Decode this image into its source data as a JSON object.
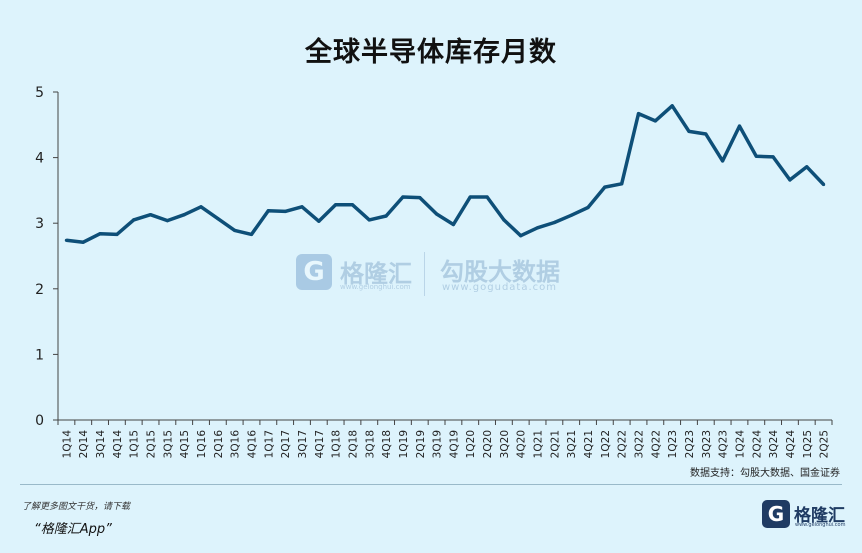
{
  "footer": {
    "source": "数据支持：勾股大数据、国金证券",
    "line1": "了解更多图文干货，请下载",
    "line2": "“格隆汇App”"
  },
  "watermark": {
    "glyph": "G",
    "brand_cn": "格隆汇",
    "brand_url": "www.gelonghui.com",
    "brand2_cn": "勾股大数据",
    "brand2_url": "www.gogudata.com"
  },
  "logo": {
    "glyph": "G",
    "name": "格隆汇",
    "url": "www.gelonghui.com"
  },
  "chart_data": {
    "type": "line",
    "title": "全球半导体库存月数",
    "xlabel": "",
    "ylabel": "",
    "ylim": [
      0,
      5
    ],
    "yticks": [
      0,
      1,
      2,
      3,
      4,
      5
    ],
    "grid": false,
    "color": "#0e4f78",
    "categories": [
      "1Q14",
      "2Q14",
      "3Q14",
      "4Q14",
      "1Q15",
      "2Q15",
      "3Q15",
      "4Q15",
      "1Q16",
      "2Q16",
      "3Q16",
      "4Q16",
      "1Q17",
      "2Q17",
      "3Q17",
      "4Q17",
      "1Q18",
      "2Q18",
      "3Q18",
      "4Q18",
      "1Q19",
      "2Q19",
      "3Q19",
      "4Q19",
      "1Q20",
      "2Q20",
      "3Q20",
      "4Q20",
      "1Q21",
      "2Q21",
      "3Q21",
      "4Q21",
      "1Q22",
      "2Q22",
      "3Q22",
      "4Q22",
      "1Q23",
      "2Q23",
      "3Q23",
      "4Q23",
      "1Q24",
      "2Q24",
      "3Q24",
      "4Q24",
      "1Q25",
      "2Q25"
    ],
    "tick_labels": [
      "1Q14",
      "2Q14",
      "3Q14",
      "4Q14",
      "1Q15",
      "2Q15",
      "3Q15",
      "4Q15",
      "1Q16",
      "2Q16",
      "3Q16",
      "4Q16",
      "1Q17",
      "2Q17",
      "3Q17",
      "4Q17",
      "1Q18",
      "2Q18",
      "3Q18",
      "4Q18",
      "1Q19",
      "2Q19",
      "3Q19",
      "4Q19",
      "1Q20",
      "2Q20",
      "3Q20",
      "4Q20",
      "1Q21",
      "2Q21",
      "3Q21",
      "4Q21",
      "1Q22",
      "2Q22",
      "3Q22",
      "4Q22",
      "1Q23",
      "2Q23",
      "3Q23",
      "4Q23",
      "1Q24",
      "2Q24",
      "3Q24",
      "4Q24",
      "1Q25",
      "2Q25"
    ],
    "values": [
      2.74,
      2.71,
      2.84,
      2.83,
      3.05,
      3.13,
      3.04,
      3.13,
      3.25,
      3.07,
      2.89,
      2.83,
      3.19,
      3.18,
      3.25,
      3.03,
      3.28,
      3.28,
      3.05,
      3.11,
      3.4,
      3.39,
      3.14,
      2.98,
      3.4,
      3.4,
      3.05,
      2.81,
      2.93,
      3.01,
      3.12,
      3.24,
      3.55,
      3.6,
      4.67,
      4.56,
      4.79,
      4.4,
      4.36,
      3.95,
      4.48,
      4.02,
      4.01,
      3.66,
      3.86,
      3.59
    ]
  }
}
